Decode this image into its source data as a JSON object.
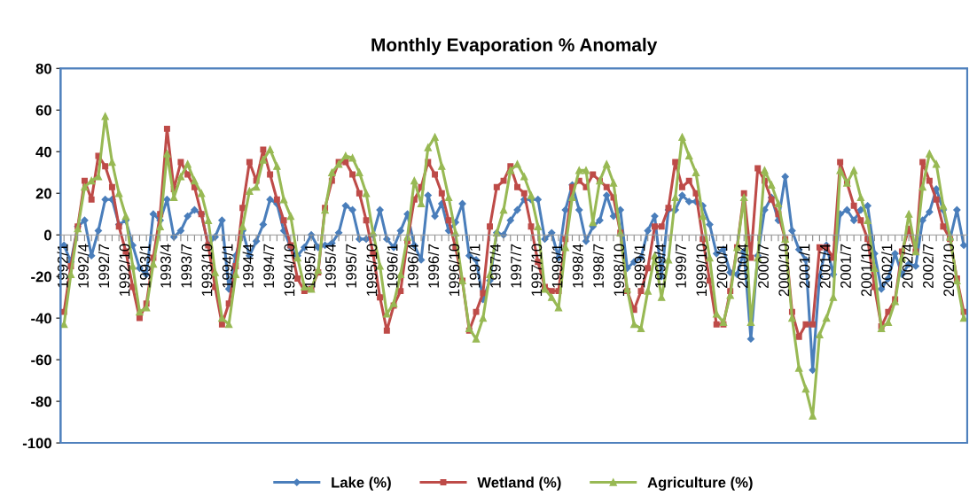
{
  "chart_data": {
    "type": "line",
    "title": "Monthly Evaporation % Anomaly",
    "categories": [
      "1992/1",
      null,
      null,
      "1992/4",
      null,
      null,
      "1992/7",
      null,
      null,
      "1992/10",
      null,
      null,
      "1993/1",
      null,
      null,
      "1993/4",
      null,
      null,
      "1993/7",
      null,
      null,
      "1993/10",
      null,
      null,
      "1994/1",
      null,
      null,
      "1994/4",
      null,
      null,
      "1994/7",
      null,
      null,
      "1994/10",
      null,
      null,
      "1995/1",
      null,
      null,
      "1995/4",
      null,
      null,
      "1995/7",
      null,
      null,
      "1995/10",
      null,
      null,
      "1996/1",
      null,
      null,
      "1996/4",
      null,
      null,
      "1996/7",
      null,
      null,
      "1996/10",
      null,
      null,
      "1997/1",
      null,
      null,
      "1997/4",
      null,
      null,
      "1997/7",
      null,
      null,
      "1997/10",
      null,
      null,
      "1998/1",
      null,
      null,
      "1998/4",
      null,
      null,
      "1998/7",
      null,
      null,
      "1998/10",
      null,
      null,
      "1999/1",
      null,
      null,
      "1999/4",
      null,
      null,
      "1999/7",
      null,
      null,
      "1999/10",
      null,
      null,
      "2000/1",
      null,
      null,
      "2000/4",
      null,
      null,
      "2000/7",
      null,
      null,
      "2000/10",
      null,
      null,
      "2001/1",
      null,
      null,
      "2001/4",
      null,
      null,
      "2001/7",
      null,
      null,
      "2001/10",
      null,
      null,
      "2002/1",
      null,
      null,
      "2002/4",
      null,
      null,
      "2002/7",
      null,
      null,
      "2002/10",
      null,
      null
    ],
    "series": [
      {
        "name": "Lake (%)",
        "color": "#4a7ebb",
        "marker": "diamond",
        "values": [
          -5,
          -13,
          4,
          7,
          -10,
          2,
          17,
          17,
          5,
          7,
          -5,
          -16,
          -19,
          10,
          7,
          17,
          -1,
          2,
          9,
          12,
          10,
          -5,
          -1,
          7,
          -26,
          -10,
          2,
          -10,
          -3,
          5,
          17,
          15,
          2,
          -6,
          -10,
          -6,
          0,
          -6,
          -5,
          -4,
          1,
          14,
          12,
          -2,
          -2,
          0,
          12,
          -2,
          -6,
          2,
          10,
          -5,
          -12,
          19,
          9,
          15,
          2,
          6,
          15,
          -10,
          -12,
          -31,
          -22,
          1,
          0,
          7,
          12,
          17,
          17,
          17,
          -2,
          1,
          -11,
          12,
          24,
          12,
          -3,
          4,
          7,
          19,
          9,
          12,
          -16,
          -13,
          -11,
          2,
          9,
          -20,
          12,
          12,
          19,
          16,
          16,
          14,
          5,
          -9,
          -7,
          -18,
          -19,
          -8,
          -50,
          -10,
          12,
          18,
          7,
          28,
          2,
          -7,
          -12,
          -65,
          -20,
          -5,
          -19,
          10,
          12,
          7,
          12,
          14,
          -9,
          -26,
          -21,
          -9,
          -19,
          -14,
          -15,
          7,
          11,
          22,
          12,
          -2,
          12,
          -5
        ]
      },
      {
        "name": "Wetland (%)",
        "color": "#be4b48",
        "marker": "square",
        "values": [
          -37,
          -15,
          4,
          26,
          17,
          38,
          33,
          23,
          4,
          -8,
          -25,
          -40,
          -33,
          -11,
          10,
          51,
          22,
          35,
          29,
          23,
          10,
          -5,
          -25,
          -43,
          -33,
          -15,
          13,
          35,
          26,
          41,
          29,
          17,
          7,
          -5,
          -21,
          -27,
          -26,
          -18,
          13,
          26,
          35,
          35,
          29,
          20,
          7,
          -9,
          -30,
          -46,
          -34,
          -27,
          -3,
          17,
          23,
          35,
          29,
          20,
          7,
          -6,
          -22,
          -46,
          -37,
          -28,
          4,
          23,
          26,
          33,
          23,
          20,
          4,
          -13,
          -25,
          -27,
          -27,
          -2,
          23,
          26,
          23,
          29,
          26,
          23,
          18,
          1,
          -27,
          -36,
          -27,
          -16,
          4,
          4,
          13,
          35,
          23,
          26,
          20,
          -2,
          -22,
          -43,
          -43,
          -27,
          -6,
          20,
          -11,
          32,
          26,
          17,
          10,
          -2,
          -37,
          -49,
          -43,
          -43,
          -6,
          -6,
          -11,
          35,
          25,
          14,
          7,
          -2,
          -25,
          -44,
          -37,
          -31,
          -8,
          3,
          -8,
          35,
          26,
          17,
          4,
          -2,
          -21,
          -37
        ]
      },
      {
        "name": "Agriculture (%)",
        "color": "#98b954",
        "marker": "triangle",
        "values": [
          -43,
          -19,
          3,
          23,
          26,
          28,
          57,
          35,
          20,
          9,
          -15,
          -37,
          -35,
          -14,
          4,
          39,
          18,
          28,
          34,
          26,
          20,
          7,
          -18,
          -40,
          -43,
          -19,
          4,
          21,
          23,
          36,
          41,
          33,
          17,
          9,
          -11,
          -25,
          -26,
          -17,
          12,
          30,
          34,
          38,
          37,
          30,
          20,
          1,
          -15,
          -38,
          -33,
          -19,
          -1,
          26,
          15,
          42,
          47,
          33,
          18,
          1,
          -22,
          -45,
          -50,
          -40,
          -19,
          1,
          12,
          31,
          34,
          28,
          19,
          4,
          -26,
          -30,
          -35,
          -6,
          18,
          31,
          31,
          6,
          26,
          34,
          25,
          1,
          -26,
          -43,
          -45,
          -27,
          -10,
          -30,
          -12,
          18,
          47,
          38,
          30,
          9,
          -11,
          -38,
          -42,
          -29,
          -6,
          18,
          -42,
          -11,
          31,
          24,
          15,
          -2,
          -40,
          -64,
          -74,
          -87,
          -48,
          -40,
          -30,
          31,
          25,
          31,
          18,
          7,
          -16,
          -45,
          -42,
          -32,
          -11,
          10,
          -8,
          23,
          39,
          34,
          14,
          -1,
          -22,
          -40
        ]
      }
    ],
    "ylim": [
      -100,
      80
    ],
    "yticks": [
      -100,
      -80,
      -60,
      -40,
      -20,
      0,
      20,
      40,
      60,
      80
    ],
    "legend": "bottom",
    "line_style": "solid"
  }
}
